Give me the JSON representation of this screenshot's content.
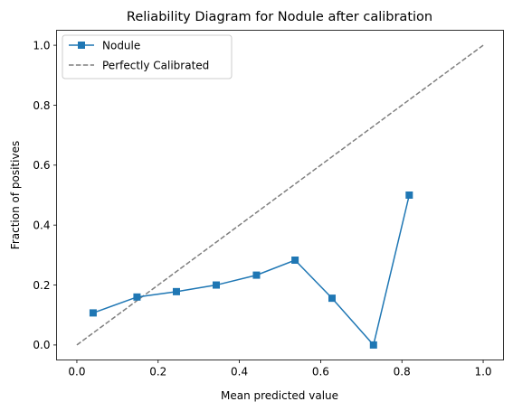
{
  "chart_data": {
    "type": "line",
    "title": "Reliability Diagram for Nodule after calibration",
    "xlabel": "Mean predicted value",
    "ylabel": "Fraction of positives",
    "xlim": [
      -0.05,
      1.05
    ],
    "ylim": [
      -0.05,
      1.05
    ],
    "xticks": [
      "0.0",
      "0.2",
      "0.4",
      "0.6",
      "0.8",
      "1.0"
    ],
    "yticks": [
      "0.0",
      "0.2",
      "0.4",
      "0.6",
      "0.8",
      "1.0"
    ],
    "grid": false,
    "legend_position": "top-left",
    "series": [
      {
        "name": "Nodule",
        "style": "solid",
        "marker": "square",
        "color": "#1f77b4",
        "x": [
          0.04,
          0.148,
          0.245,
          0.343,
          0.442,
          0.537,
          0.628,
          0.73,
          0.818
        ],
        "y": [
          0.107,
          0.16,
          0.178,
          0.2,
          0.233,
          0.283,
          0.156,
          0.0,
          0.5
        ]
      },
      {
        "name": "Perfectly Calibrated",
        "style": "dashed",
        "marker": "none",
        "color": "#7f7f7f",
        "x": [
          0,
          1
        ],
        "y": [
          0,
          1
        ]
      }
    ]
  }
}
